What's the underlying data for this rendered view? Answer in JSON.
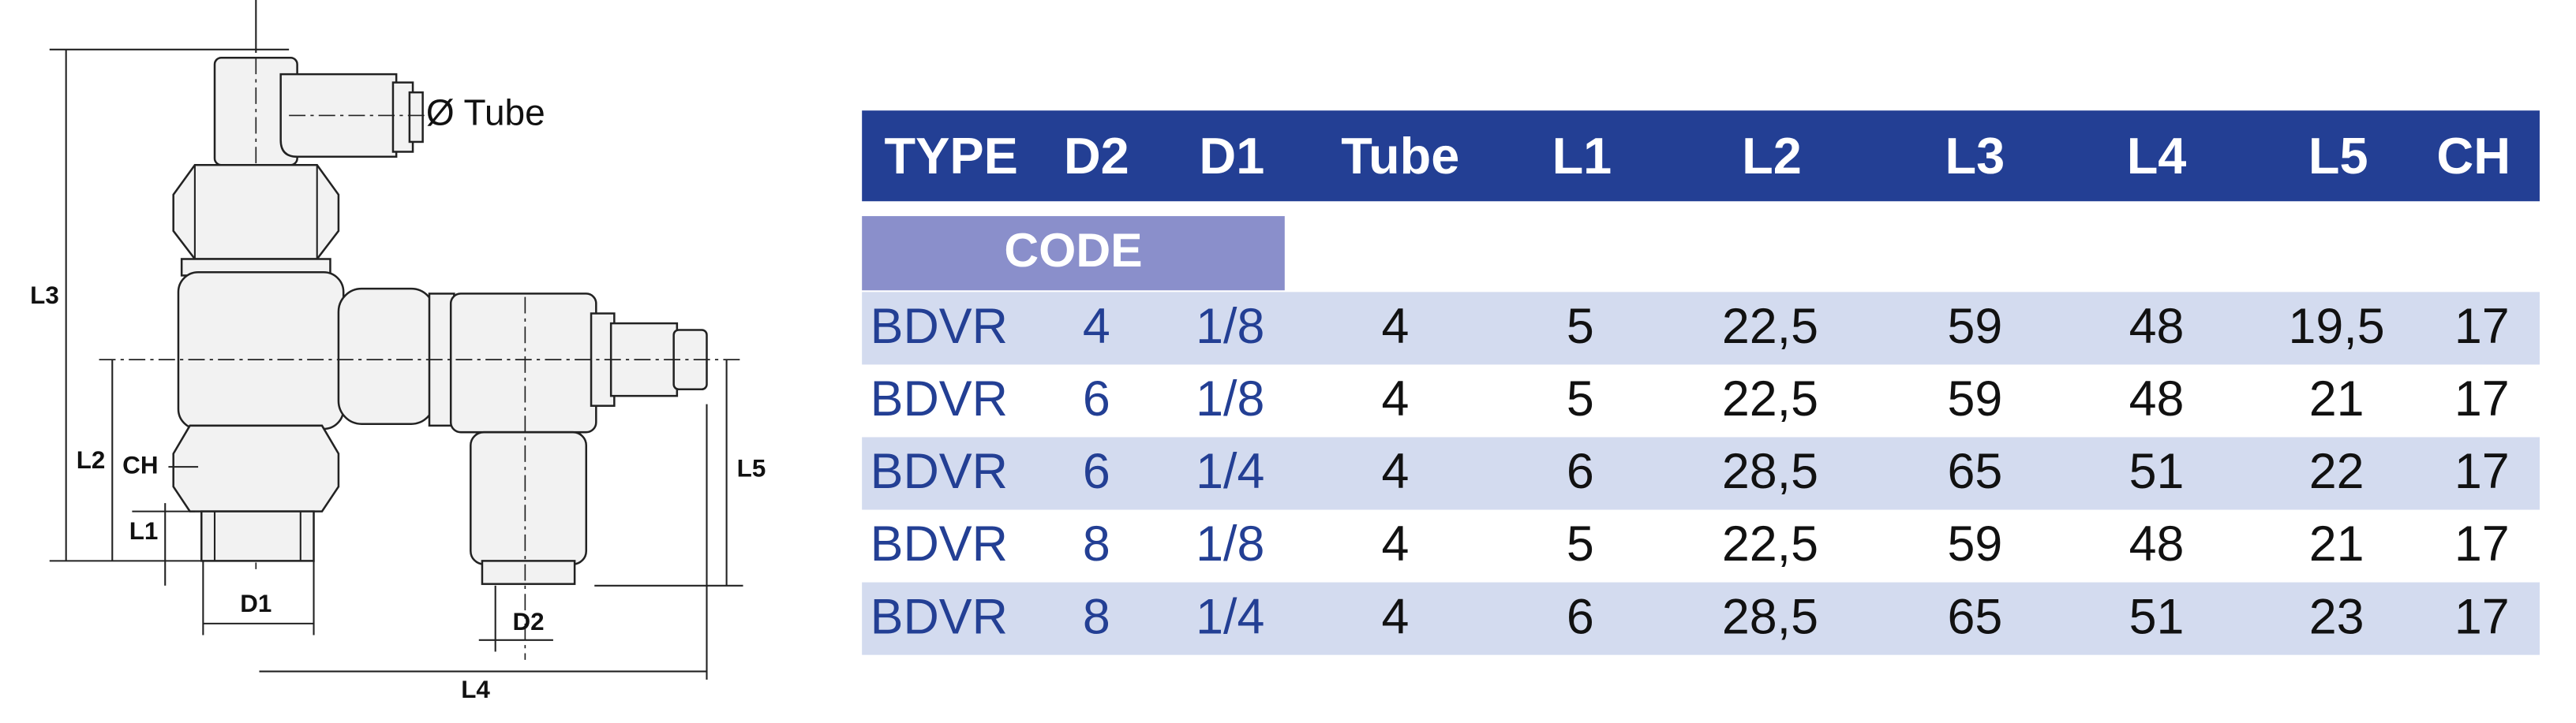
{
  "diagram": {
    "labels": {
      "tube": "Ø Tube",
      "l3": "L3",
      "l2": "L2",
      "ch": "CH",
      "l1": "L1",
      "d1": "D1",
      "d2": "D2",
      "l4": "L4",
      "l5": "L5"
    }
  },
  "table": {
    "header": [
      "TYPE",
      "D2",
      "D1",
      "Tube",
      "L1",
      "L2",
      "L3",
      "L4",
      "L5",
      "CH"
    ],
    "code_label": "CODE",
    "rows": [
      [
        "BDVR",
        "4",
        "1/8",
        "4",
        "5",
        "22,5",
        "59",
        "48",
        "19,5",
        "17"
      ],
      [
        "BDVR",
        "6",
        "1/8",
        "4",
        "5",
        "22,5",
        "59",
        "48",
        "21",
        "17"
      ],
      [
        "BDVR",
        "6",
        "1/4",
        "4",
        "6",
        "28,5",
        "65",
        "51",
        "22",
        "17"
      ],
      [
        "BDVR",
        "8",
        "1/8",
        "4",
        "5",
        "22,5",
        "59",
        "48",
        "21",
        "17"
      ],
      [
        "BDVR",
        "8",
        "1/4",
        "4",
        "6",
        "28,5",
        "65",
        "51",
        "23",
        "17"
      ]
    ]
  }
}
